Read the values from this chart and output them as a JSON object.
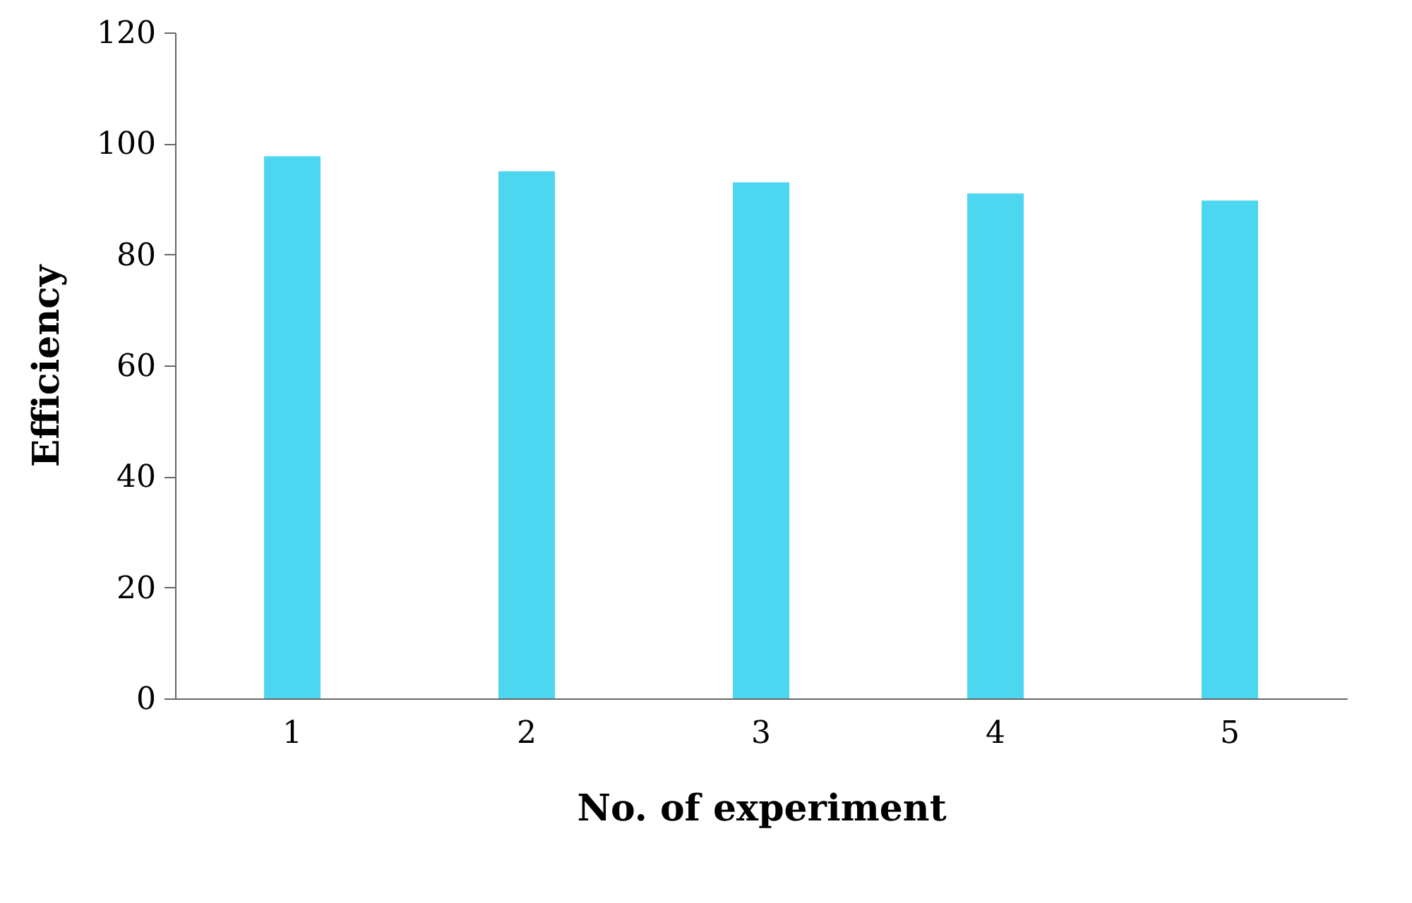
{
  "chart_data": {
    "type": "bar",
    "xlabel": "No. of experiment",
    "ylabel": "Efficiency",
    "categories": [
      "1",
      "2",
      "3",
      "4",
      "5"
    ],
    "values": [
      97.7,
      95,
      93,
      91,
      89.7
    ],
    "color": "#4dd6ef",
    "ylim": [
      0,
      120
    ],
    "yticks": [
      0,
      20,
      40,
      60,
      80,
      100,
      120
    ],
    "grid": false
  }
}
